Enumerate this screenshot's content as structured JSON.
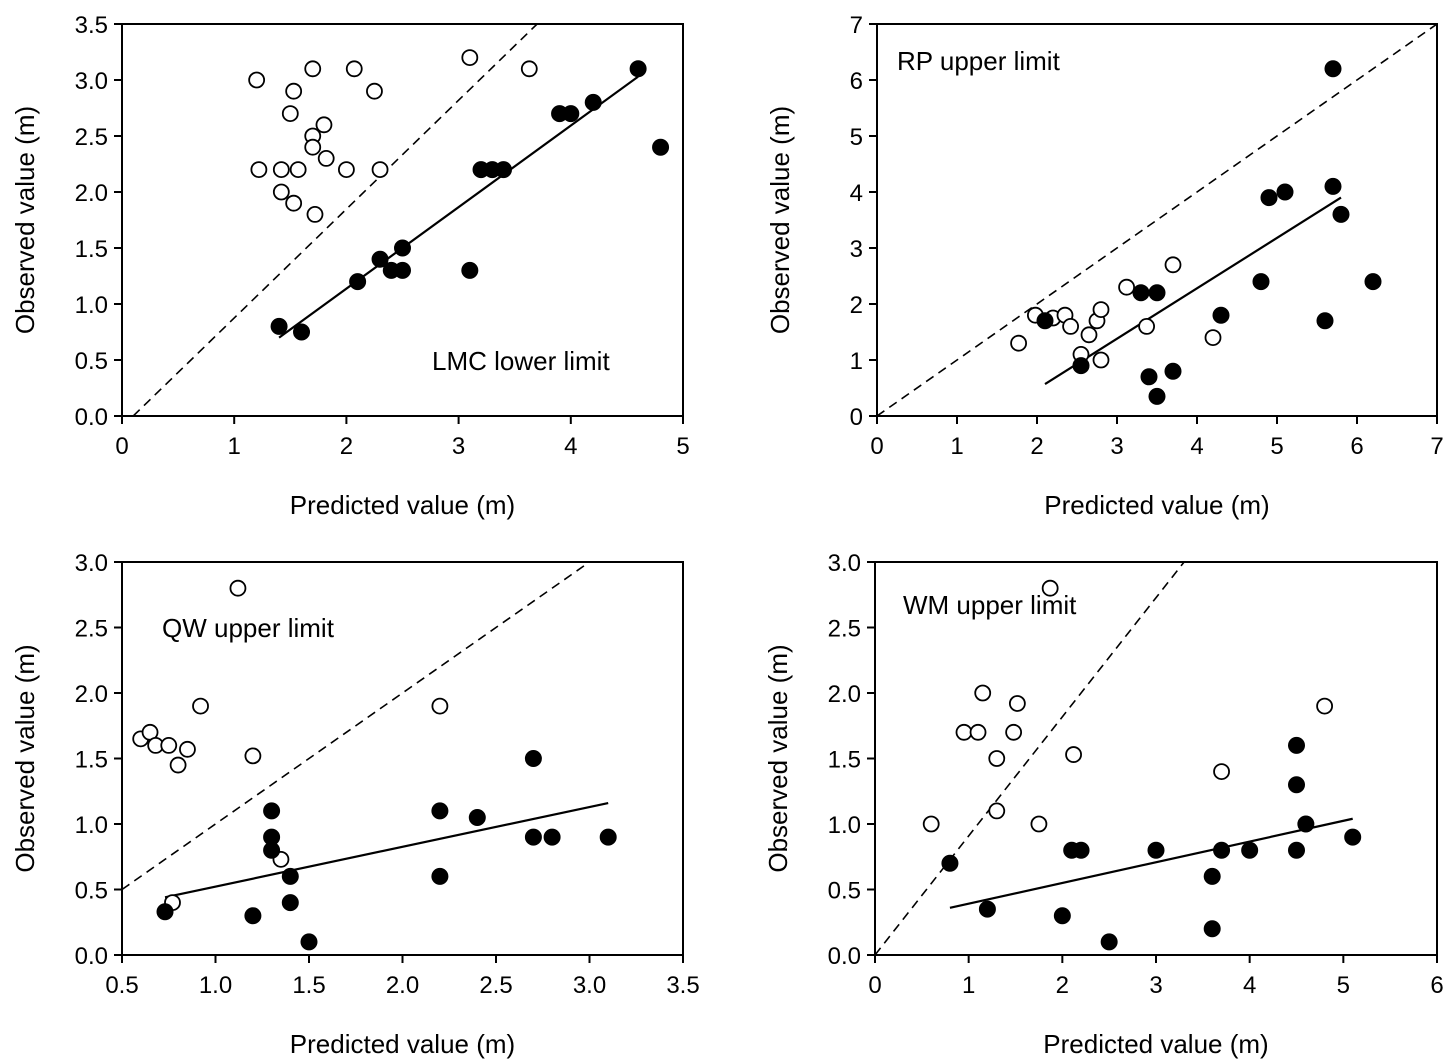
{
  "chart_data": [
    {
      "type": "scatter",
      "annotation": "LMC lower limit",
      "xlabel": "Predicted value (m)",
      "ylabel": "Observed value (m)",
      "xlim": [
        0,
        5
      ],
      "ylim": [
        0,
        3.5
      ],
      "xticks": [
        "0",
        "1",
        "2",
        "3",
        "4",
        "5"
      ],
      "yticks": [
        "0.0",
        "0.5",
        "1.0",
        "1.5",
        "2.0",
        "2.5",
        "3.0",
        "3.5"
      ],
      "grid": false,
      "open_points": [
        [
          1.2,
          3.0
        ],
        [
          1.22,
          2.2
        ],
        [
          1.42,
          2.2
        ],
        [
          1.42,
          2.0
        ],
        [
          1.5,
          2.7
        ],
        [
          1.53,
          2.9
        ],
        [
          1.53,
          1.9
        ],
        [
          1.57,
          2.2
        ],
        [
          1.7,
          3.1
        ],
        [
          1.7,
          2.5
        ],
        [
          1.7,
          2.4
        ],
        [
          1.72,
          1.8
        ],
        [
          1.8,
          2.6
        ],
        [
          1.82,
          2.3
        ],
        [
          2.0,
          2.2
        ],
        [
          2.07,
          3.1
        ],
        [
          2.25,
          2.9
        ],
        [
          2.3,
          2.2
        ],
        [
          3.1,
          3.2
        ],
        [
          3.63,
          3.1
        ]
      ],
      "filled_points": [
        [
          1.4,
          0.8
        ],
        [
          1.6,
          0.75
        ],
        [
          2.1,
          1.2
        ],
        [
          2.3,
          1.4
        ],
        [
          2.4,
          1.3
        ],
        [
          2.5,
          1.5
        ],
        [
          2.5,
          1.3
        ],
        [
          3.1,
          1.3
        ],
        [
          3.2,
          2.2
        ],
        [
          3.3,
          2.2
        ],
        [
          3.4,
          2.2
        ],
        [
          3.9,
          2.7
        ],
        [
          4.0,
          2.7
        ],
        [
          4.2,
          2.8
        ],
        [
          4.6,
          3.1
        ],
        [
          4.8,
          2.4
        ]
      ],
      "fit_line": [
        [
          1.4,
          0.7
        ],
        [
          4.6,
          3.03
        ]
      ],
      "reference_line": [
        [
          0.1,
          0.0
        ],
        [
          3.7,
          3.5
        ]
      ]
    },
    {
      "type": "scatter",
      "annotation": "RP upper limit",
      "xlabel": "Predicted value (m)",
      "ylabel": "Observed value (m)",
      "xlim": [
        0,
        7
      ],
      "ylim": [
        0,
        7
      ],
      "xticks": [
        "0",
        "1",
        "2",
        "3",
        "4",
        "5",
        "6",
        "7"
      ],
      "yticks": [
        "0",
        "1",
        "2",
        "3",
        "4",
        "5",
        "6",
        "7"
      ],
      "grid": false,
      "open_points": [
        [
          1.77,
          1.3
        ],
        [
          1.98,
          1.8
        ],
        [
          2.2,
          1.75
        ],
        [
          2.35,
          1.8
        ],
        [
          2.42,
          1.6
        ],
        [
          2.55,
          1.1
        ],
        [
          2.65,
          1.45
        ],
        [
          2.75,
          1.7
        ],
        [
          2.8,
          1.9
        ],
        [
          2.8,
          1.0
        ],
        [
          3.12,
          2.3
        ],
        [
          3.37,
          1.6
        ],
        [
          3.7,
          2.7
        ],
        [
          4.2,
          1.4
        ]
      ],
      "filled_points": [
        [
          2.1,
          1.7
        ],
        [
          2.55,
          0.9
        ],
        [
          3.3,
          2.2
        ],
        [
          3.4,
          0.7
        ],
        [
          3.5,
          2.2
        ],
        [
          3.5,
          0.35
        ],
        [
          3.7,
          0.8
        ],
        [
          4.3,
          1.8
        ],
        [
          4.8,
          2.4
        ],
        [
          4.9,
          3.9
        ],
        [
          5.1,
          4.0
        ],
        [
          5.6,
          1.7
        ],
        [
          5.7,
          4.1
        ],
        [
          5.7,
          6.2
        ],
        [
          5.8,
          3.6
        ],
        [
          6.2,
          2.4
        ]
      ],
      "fit_line": [
        [
          2.1,
          0.57
        ],
        [
          5.8,
          3.9
        ]
      ],
      "reference_line": [
        [
          0.0,
          0.0
        ],
        [
          7.0,
          7.0
        ]
      ]
    },
    {
      "type": "scatter",
      "annotation": "QW upper limit",
      "xlabel": "Predicted value (m)",
      "ylabel": "Observed value (m)",
      "xlim": [
        0.5,
        3.5
      ],
      "ylim": [
        0.0,
        3.0
      ],
      "xticks": [
        "0.5",
        "1.0",
        "1.5",
        "2.0",
        "2.5",
        "3.0",
        "3.5"
      ],
      "yticks": [
        "0.0",
        "0.5",
        "1.0",
        "1.5",
        "2.0",
        "2.5",
        "3.0"
      ],
      "grid": false,
      "open_points": [
        [
          0.6,
          1.65
        ],
        [
          0.65,
          1.7
        ],
        [
          0.68,
          1.6
        ],
        [
          0.75,
          1.6
        ],
        [
          0.8,
          1.45
        ],
        [
          0.85,
          1.57
        ],
        [
          0.92,
          1.9
        ],
        [
          1.12,
          2.8
        ],
        [
          1.2,
          1.52
        ],
        [
          1.35,
          0.73
        ],
        [
          0.77,
          0.4
        ],
        [
          2.2,
          1.9
        ]
      ],
      "filled_points": [
        [
          0.73,
          0.33
        ],
        [
          1.2,
          0.3
        ],
        [
          1.3,
          1.1
        ],
        [
          1.3,
          0.9
        ],
        [
          1.3,
          0.8
        ],
        [
          1.4,
          0.6
        ],
        [
          1.4,
          0.4
        ],
        [
          1.5,
          0.1
        ],
        [
          2.2,
          1.1
        ],
        [
          2.2,
          0.6
        ],
        [
          2.4,
          1.05
        ],
        [
          2.7,
          1.5
        ],
        [
          2.7,
          0.9
        ],
        [
          2.8,
          0.9
        ],
        [
          3.1,
          0.9
        ]
      ],
      "fit_line": [
        [
          0.73,
          0.44
        ],
        [
          3.1,
          1.16
        ]
      ],
      "reference_line": [
        [
          0.5,
          0.5
        ],
        [
          3.0,
          3.0
        ]
      ]
    },
    {
      "type": "scatter",
      "annotation": "WM upper limit",
      "xlabel": "Predicted value (m)",
      "ylabel": "Observed value (m)",
      "xlim": [
        0,
        6
      ],
      "ylim": [
        0.0,
        3.0
      ],
      "xticks": [
        "0",
        "1",
        "2",
        "3",
        "4",
        "5",
        "6"
      ],
      "yticks": [
        "0.0",
        "0.5",
        "1.0",
        "1.5",
        "2.0",
        "2.5",
        "3.0"
      ],
      "grid": false,
      "open_points": [
        [
          0.6,
          1.0
        ],
        [
          0.95,
          1.7
        ],
        [
          1.1,
          1.7
        ],
        [
          1.15,
          2.0
        ],
        [
          1.3,
          1.5
        ],
        [
          1.3,
          1.1
        ],
        [
          1.48,
          1.7
        ],
        [
          1.52,
          1.92
        ],
        [
          1.75,
          1.0
        ],
        [
          1.87,
          2.8
        ],
        [
          2.12,
          1.53
        ],
        [
          3.7,
          1.4
        ],
        [
          4.8,
          1.9
        ]
      ],
      "filled_points": [
        [
          0.8,
          0.7
        ],
        [
          1.2,
          0.35
        ],
        [
          2.0,
          0.3
        ],
        [
          2.1,
          0.8
        ],
        [
          2.2,
          0.8
        ],
        [
          2.5,
          0.1
        ],
        [
          3.0,
          0.8
        ],
        [
          3.6,
          0.6
        ],
        [
          3.6,
          0.2
        ],
        [
          3.7,
          0.8
        ],
        [
          4.0,
          0.8
        ],
        [
          4.5,
          1.6
        ],
        [
          4.5,
          1.3
        ],
        [
          4.5,
          0.8
        ],
        [
          4.6,
          1.0
        ],
        [
          5.1,
          0.9
        ]
      ],
      "fit_line": [
        [
          0.8,
          0.36
        ],
        [
          5.1,
          1.04
        ]
      ],
      "reference_line": [
        [
          0.0,
          0.0
        ],
        [
          3.3,
          3.0
        ]
      ]
    }
  ]
}
